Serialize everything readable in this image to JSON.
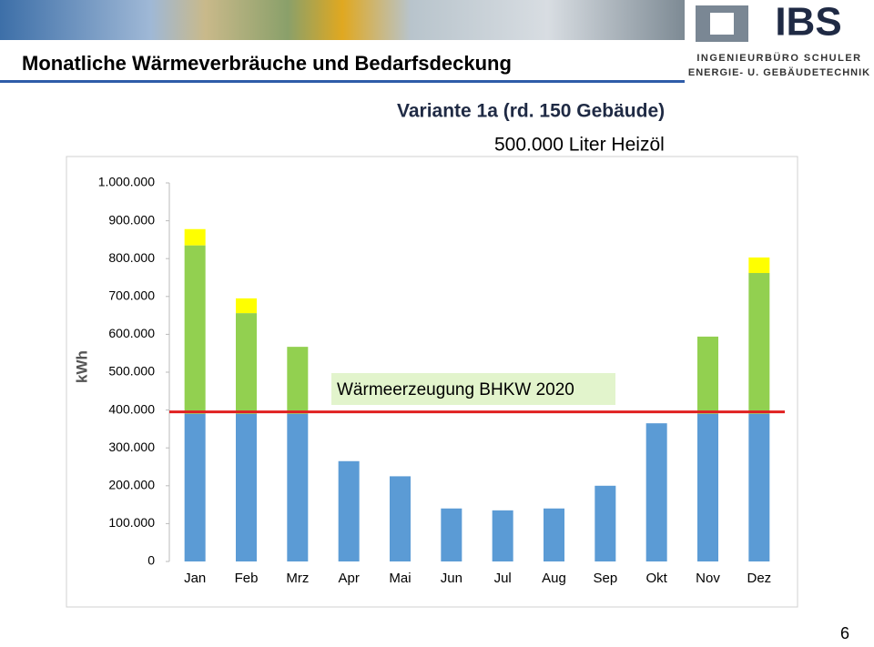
{
  "header": {
    "title": "Monatliche Wärmeverbräuche und Bedarfsdeckung",
    "logo": "IBS",
    "company_line1": "INGENIEURBÜRO SCHULER",
    "company_line2": "ENERGIE- U. GEBÄUDETECHNIK"
  },
  "page_number": "6",
  "chart_data": {
    "type": "stacked_bar",
    "title": "Variante 1a (rd. 150 Gebäude)",
    "subtitle": "500.000 Liter Heizöl",
    "y_label": "kWh",
    "categories": [
      "Jan",
      "Feb",
      "Mrz",
      "Apr",
      "Mai",
      "Jun",
      "Jul",
      "Aug",
      "Sep",
      "Okt",
      "Nov",
      "Dez"
    ],
    "series": [
      {
        "color": "#5b9bd5",
        "values": [
          390000,
          390000,
          390000,
          265000,
          225000,
          140000,
          135000,
          140000,
          200000,
          365000,
          390000,
          390000
        ]
      },
      {
        "color": "#92d050",
        "values": [
          445000,
          266000,
          177000,
          0,
          0,
          0,
          0,
          0,
          0,
          0,
          204000,
          372000
        ]
      },
      {
        "color": "#ffff00",
        "values": [
          43000,
          39000,
          0,
          0,
          0,
          0,
          0,
          0,
          0,
          0,
          0,
          41000
        ]
      }
    ],
    "reference_line": {
      "value": 395000,
      "label": "Wärmeerzeugung BHKW 2020",
      "color": "#e02020"
    },
    "ylim": [
      0,
      1000000
    ],
    "yticks": [
      0,
      {
        "value": 100000,
        "label": "100.000"
      },
      {
        "value": 200000,
        "label": "200.000"
      },
      {
        "value": 300000,
        "label": "300.000"
      },
      {
        "value": 400000,
        "label": "400.000"
      },
      {
        "value": 500000,
        "label": "500.000"
      },
      {
        "value": 600000,
        "label": "600.000"
      },
      {
        "value": 700000,
        "label": "700.000"
      },
      {
        "value": 800000,
        "label": "800.000"
      },
      {
        "value": 900000,
        "label": "900.000"
      },
      {
        "value": 1000000,
        "label": "1.000.000"
      }
    ],
    "grid": false
  }
}
